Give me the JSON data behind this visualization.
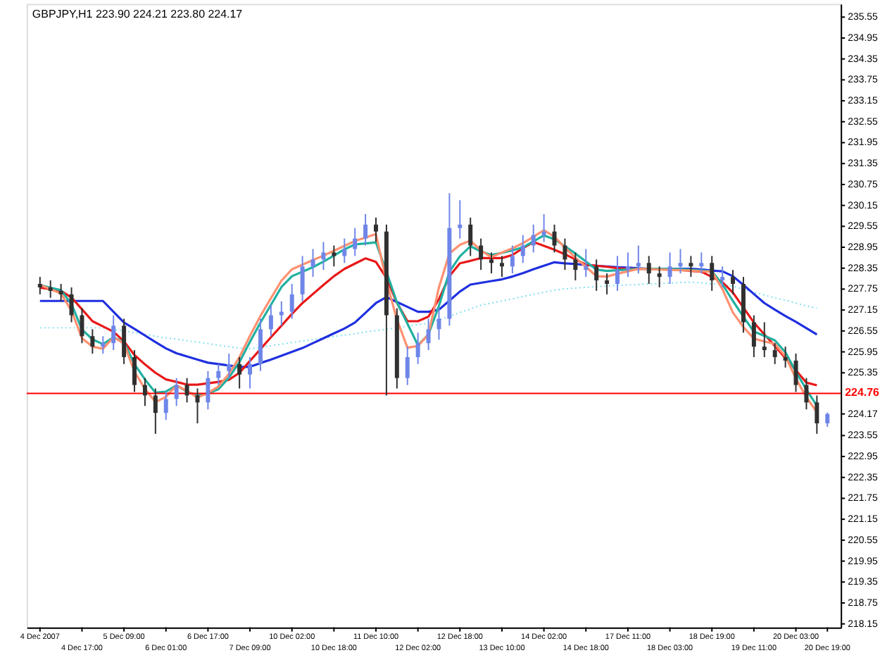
{
  "chart_data": {
    "type": "candlestick",
    "title": "GBPJPY,H1  223.90 224.21 223.80 224.17",
    "grid": false,
    "categories": [
      "4 Dec 2007",
      null,
      null,
      null,
      "4 Dec 17:00",
      null,
      null,
      null,
      "5 Dec 09:00",
      null,
      null,
      null,
      "6 Dec 01:00",
      null,
      null,
      null,
      "6 Dec 17:00",
      null,
      null,
      null,
      "7 Dec 09:00",
      null,
      null,
      null,
      "10 Dec 02:00",
      null,
      null,
      null,
      "10 Dec 18:00",
      null,
      null,
      null,
      "11 Dec 10:00",
      null,
      null,
      null,
      "12 Dec 02:00",
      null,
      null,
      null,
      "12 Dec 18:00",
      null,
      null,
      null,
      "13 Dec 10:00",
      null,
      null,
      null,
      "14 Dec 02:00",
      null,
      null,
      null,
      "14 Dec 18:00",
      null,
      null,
      null,
      "17 Dec 11:00",
      null,
      null,
      null,
      "18 Dec 03:00",
      null,
      null,
      null,
      "18 Dec 19:00",
      null,
      null,
      null,
      "19 Dec 11:00",
      null,
      null,
      null,
      "20 Dec 03:00",
      null,
      null,
      "20 Dec 19:00"
    ],
    "ohlc": [
      [
        227.9,
        228.1,
        227.6,
        227.8
      ],
      [
        227.8,
        228.0,
        227.5,
        227.7
      ],
      [
        227.7,
        227.9,
        227.4,
        227.6
      ],
      [
        227.6,
        227.8,
        226.8,
        227.0
      ],
      [
        227.0,
        227.2,
        226.2,
        226.4
      ],
      [
        226.4,
        226.6,
        225.9,
        226.1
      ],
      [
        226.1,
        226.4,
        225.9,
        226.2
      ],
      [
        226.2,
        227.0,
        226.0,
        226.7
      ],
      [
        226.7,
        226.9,
        225.6,
        225.8
      ],
      [
        225.8,
        226.0,
        224.8,
        225.0
      ],
      [
        225.0,
        225.2,
        224.4,
        224.7
      ],
      [
        224.7,
        224.9,
        223.6,
        224.2
      ],
      [
        224.2,
        224.8,
        224.0,
        224.6
      ],
      [
        224.6,
        225.2,
        224.4,
        225.0
      ],
      [
        225.0,
        225.2,
        224.5,
        224.7
      ],
      [
        224.7,
        224.9,
        223.9,
        224.5
      ],
      [
        224.5,
        225.4,
        224.3,
        225.2
      ],
      [
        225.2,
        225.6,
        225.0,
        225.4
      ],
      [
        225.4,
        225.9,
        225.2,
        225.6
      ],
      [
        225.6,
        225.8,
        224.9,
        225.3
      ],
      [
        225.3,
        225.8,
        224.9,
        225.6
      ],
      [
        225.6,
        226.9,
        225.4,
        226.6
      ],
      [
        226.6,
        227.3,
        226.4,
        227.0
      ],
      [
        227.0,
        227.4,
        226.7,
        227.1
      ],
      [
        227.1,
        227.9,
        226.9,
        227.6
      ],
      [
        227.6,
        228.7,
        227.4,
        228.4
      ],
      [
        228.4,
        228.9,
        228.1,
        228.6
      ],
      [
        228.6,
        229.1,
        228.3,
        228.8
      ],
      [
        228.8,
        229.0,
        228.4,
        228.7
      ],
      [
        228.7,
        229.2,
        228.5,
        228.9
      ],
      [
        228.9,
        229.5,
        228.7,
        229.2
      ],
      [
        229.2,
        229.9,
        229.0,
        229.6
      ],
      [
        229.6,
        229.8,
        229.1,
        229.4
      ],
      [
        229.4,
        229.6,
        224.7,
        227.0
      ],
      [
        227.0,
        227.2,
        224.9,
        225.2
      ],
      [
        225.2,
        226.1,
        225.0,
        225.8
      ],
      [
        225.8,
        226.5,
        225.6,
        226.2
      ],
      [
        226.2,
        226.9,
        226.0,
        226.6
      ],
      [
        226.6,
        227.2,
        226.3,
        226.9
      ],
      [
        226.9,
        230.5,
        226.7,
        229.5
      ],
      [
        229.5,
        230.3,
        229.2,
        229.6
      ],
      [
        229.6,
        229.8,
        228.7,
        229.0
      ],
      [
        229.0,
        229.2,
        228.3,
        228.6
      ],
      [
        228.6,
        228.8,
        228.2,
        228.5
      ],
      [
        228.5,
        228.7,
        228.1,
        228.4
      ],
      [
        228.4,
        229.0,
        228.2,
        228.7
      ],
      [
        228.7,
        229.3,
        228.5,
        229.0
      ],
      [
        229.0,
        229.6,
        228.8,
        229.3
      ],
      [
        229.3,
        229.9,
        229.1,
        229.4
      ],
      [
        229.4,
        229.6,
        228.8,
        229.0
      ],
      [
        229.0,
        229.2,
        228.3,
        228.6
      ],
      [
        228.6,
        228.8,
        228.0,
        228.3
      ],
      [
        228.3,
        228.9,
        228.1,
        228.4
      ],
      [
        228.4,
        228.6,
        227.7,
        228.0
      ],
      [
        228.0,
        228.2,
        227.6,
        227.9
      ],
      [
        227.9,
        228.7,
        227.7,
        228.3
      ],
      [
        228.3,
        228.8,
        228.1,
        228.4
      ],
      [
        228.4,
        229.0,
        228.2,
        228.5
      ],
      [
        228.5,
        228.7,
        227.9,
        228.2
      ],
      [
        228.2,
        228.4,
        227.8,
        228.1
      ],
      [
        228.1,
        228.8,
        227.9,
        228.4
      ],
      [
        228.4,
        228.9,
        228.2,
        228.5
      ],
      [
        228.5,
        228.7,
        228.1,
        228.4
      ],
      [
        228.4,
        228.8,
        228.2,
        228.5
      ],
      [
        228.5,
        228.7,
        227.7,
        228.0
      ],
      [
        228.0,
        228.4,
        227.8,
        228.1
      ],
      [
        228.1,
        228.3,
        227.6,
        227.9
      ],
      [
        227.9,
        228.1,
        226.5,
        226.8
      ],
      [
        226.8,
        227.0,
        225.8,
        226.1
      ],
      [
        226.1,
        226.8,
        225.8,
        226.0
      ],
      [
        226.0,
        226.2,
        225.6,
        225.8
      ],
      [
        225.8,
        226.1,
        225.5,
        225.7
      ],
      [
        225.7,
        225.9,
        224.8,
        225.0
      ],
      [
        225.0,
        225.2,
        224.3,
        224.5
      ],
      [
        224.5,
        224.7,
        223.6,
        223.9
      ],
      [
        223.9,
        224.21,
        223.8,
        224.17
      ]
    ],
    "colors": [
      "#303030",
      "#303030",
      "#303030",
      "#303030",
      "#303030",
      "#303030",
      "#6f86e8",
      "#6f86e8",
      "#303030",
      "#303030",
      "#303030",
      "#303030",
      "#6f86e8",
      "#6f86e8",
      "#303030",
      "#303030",
      "#6f86e8",
      "#6f86e8",
      "#6f86e8",
      "#303030",
      "#6f86e8",
      "#6f86e8",
      "#6f86e8",
      "#6f86e8",
      "#6f86e8",
      "#6f86e8",
      "#6f86e8",
      "#6f86e8",
      "#303030",
      "#6f86e8",
      "#6f86e8",
      "#6f86e8",
      "#303030",
      "#303030",
      "#303030",
      "#6f86e8",
      "#6f86e8",
      "#6f86e8",
      "#6f86e8",
      "#6f86e8",
      "#6f86e8",
      "#303030",
      "#303030",
      "#303030",
      "#303030",
      "#6f86e8",
      "#6f86e8",
      "#6f86e8",
      "#6f86e8",
      "#303030",
      "#303030",
      "#303030",
      "#6f86e8",
      "#303030",
      "#303030",
      "#6f86e8",
      "#6f86e8",
      "#6f86e8",
      "#303030",
      "#303030",
      "#6f86e8",
      "#6f86e8",
      "#303030",
      "#6f86e8",
      "#303030",
      "#6f86e8",
      "#303030",
      "#303030",
      "#303030",
      "#303030",
      "#303030",
      "#303030",
      "#303030",
      "#303030",
      "#303030",
      "#6f86e8"
    ],
    "series": [
      {
        "type": "line",
        "color": "#80e0f0",
        "line_style": "dotted",
        "values": [
          226.64,
          226.64,
          226.64,
          226.64,
          226.64,
          226.64,
          226.64,
          226.59,
          226.55,
          226.5,
          226.45,
          226.4,
          226.35,
          226.32,
          226.27,
          226.23,
          226.19,
          226.14,
          226.1,
          226.06,
          226.04,
          226.08,
          226.13,
          226.17,
          226.22,
          226.26,
          226.3,
          226.35,
          226.39,
          226.43,
          226.47,
          226.52,
          226.56,
          226.6,
          226.64,
          226.69,
          226.73,
          226.77,
          226.87,
          226.97,
          227.08,
          227.18,
          227.29,
          227.35,
          227.41,
          227.47,
          227.54,
          227.6,
          227.66,
          227.72,
          227.76,
          227.78,
          227.8,
          227.82,
          227.84,
          227.86,
          227.87,
          227.88,
          227.9,
          227.91,
          227.92,
          227.94,
          227.95,
          227.93,
          227.9,
          227.88,
          227.83,
          227.75,
          227.66,
          227.58,
          227.5,
          227.43,
          227.35,
          227.27,
          227.2,
          null
        ]
      },
      {
        "type": "line",
        "color": "#1f2fe0",
        "line_style": "solid",
        "values": [
          227.41,
          227.41,
          227.41,
          227.41,
          227.41,
          227.41,
          227.41,
          227.1,
          226.79,
          226.61,
          226.42,
          226.23,
          226.05,
          225.91,
          225.82,
          225.73,
          225.64,
          225.6,
          225.56,
          225.52,
          225.52,
          225.63,
          225.73,
          225.84,
          225.95,
          226.06,
          226.2,
          226.34,
          226.48,
          226.62,
          226.79,
          227.07,
          227.35,
          227.52,
          227.38,
          227.24,
          227.1,
          227.1,
          227.16,
          227.42,
          227.68,
          227.88,
          227.93,
          227.98,
          228.03,
          228.11,
          228.21,
          228.32,
          228.42,
          228.52,
          228.49,
          228.47,
          228.44,
          228.42,
          228.4,
          228.38,
          228.37,
          228.35,
          228.33,
          228.33,
          228.33,
          228.33,
          228.33,
          228.31,
          228.28,
          228.26,
          228.12,
          227.87,
          227.61,
          227.35,
          227.16,
          226.98,
          226.81,
          226.63,
          226.45,
          null
        ]
      },
      {
        "type": "line",
        "color": "#e81818",
        "line_style": "solid",
        "values": [
          227.79,
          227.75,
          227.7,
          227.51,
          227.17,
          226.83,
          226.68,
          226.53,
          226.25,
          225.86,
          225.59,
          225.35,
          225.16,
          225.09,
          225.01,
          225.01,
          225.05,
          225.09,
          225.15,
          225.35,
          225.69,
          226.03,
          226.37,
          226.7,
          227.04,
          227.35,
          227.61,
          227.87,
          228.12,
          228.33,
          228.48,
          228.63,
          228.53,
          228.07,
          227.36,
          226.83,
          226.83,
          226.96,
          227.46,
          228.12,
          228.49,
          228.56,
          228.64,
          228.64,
          228.64,
          228.73,
          228.92,
          229.1,
          228.99,
          228.88,
          228.75,
          228.6,
          228.45,
          228.42,
          228.39,
          228.35,
          228.33,
          228.33,
          228.33,
          228.33,
          228.32,
          228.3,
          228.27,
          228.25,
          228.1,
          227.95,
          227.65,
          227.22,
          226.79,
          226.45,
          226.12,
          225.77,
          225.42,
          225.07,
          224.99,
          null
        ]
      },
      {
        "type": "line",
        "color": "#20b0a0",
        "line_style": "solid",
        "values": [
          227.87,
          227.79,
          227.72,
          227.32,
          226.59,
          226.31,
          226.17,
          226.37,
          226.22,
          225.6,
          225.16,
          224.78,
          224.81,
          224.99,
          224.81,
          224.7,
          224.76,
          224.88,
          225.21,
          225.66,
          226.24,
          226.79,
          227.3,
          227.81,
          228.12,
          228.25,
          228.38,
          228.54,
          228.71,
          228.89,
          229.03,
          229.06,
          229.09,
          228.25,
          227.37,
          226.76,
          226.14,
          226.45,
          227.27,
          228.25,
          228.69,
          228.98,
          228.83,
          228.73,
          228.79,
          228.86,
          228.95,
          229.12,
          229.29,
          229.18,
          228.98,
          228.77,
          228.54,
          228.31,
          228.27,
          228.29,
          228.31,
          228.33,
          228.33,
          228.33,
          228.33,
          228.32,
          228.3,
          228.28,
          228.26,
          227.89,
          227.41,
          226.96,
          226.53,
          226.41,
          226.28,
          225.94,
          225.38,
          224.87,
          224.41,
          null
        ]
      },
      {
        "type": "line",
        "color": "#ff9070",
        "line_style": "solid",
        "values": [
          227.87,
          227.75,
          227.62,
          227.13,
          226.34,
          226.1,
          226.04,
          226.37,
          226.19,
          225.38,
          224.89,
          224.51,
          224.66,
          224.99,
          224.83,
          224.64,
          224.77,
          224.96,
          225.32,
          225.8,
          226.41,
          226.98,
          227.49,
          227.99,
          228.32,
          228.45,
          228.58,
          228.71,
          228.85,
          228.99,
          229.13,
          229.23,
          229.33,
          227.97,
          226.88,
          226.07,
          226.12,
          226.45,
          227.8,
          228.77,
          229.02,
          229.14,
          228.85,
          228.67,
          228.8,
          228.92,
          229.07,
          229.25,
          229.44,
          229.25,
          228.94,
          228.65,
          228.39,
          228.12,
          228.11,
          228.19,
          228.26,
          228.33,
          228.32,
          228.31,
          228.3,
          228.29,
          228.28,
          228.26,
          228.25,
          227.75,
          227.08,
          226.66,
          226.33,
          226.25,
          226.18,
          225.82,
          225.19,
          224.65,
          224.22,
          null
        ]
      }
    ],
    "ref_lines": [
      {
        "axis": "y",
        "value": 224.76,
        "label": "224.76",
        "color": "#ff0000"
      }
    ],
    "ylim": [
      218.05,
      235.93
    ],
    "yticks": [
      235.55,
      234.95,
      234.35,
      233.75,
      233.15,
      232.55,
      231.95,
      231.35,
      230.75,
      230.15,
      229.55,
      228.95,
      228.35,
      227.75,
      227.15,
      226.55,
      225.95,
      225.35,
      224.17,
      223.55,
      222.95,
      222.35,
      221.75,
      221.15,
      220.55,
      219.95,
      219.35,
      218.75,
      218.15
    ]
  }
}
